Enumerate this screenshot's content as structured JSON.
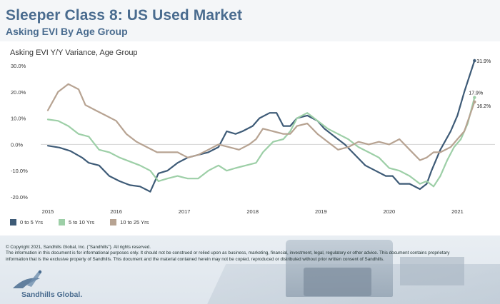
{
  "header": {
    "title": "Sleeper Class 8:  US Used Market",
    "subtitle": "Asking EVI By Age Group"
  },
  "chart_label": "Asking EVI Y/Y Variance, Age Group",
  "legend": [
    {
      "name": "0 to 5 Yrs",
      "color": "#3e5b77"
    },
    {
      "name": "5 to 10 Yrs",
      "color": "#9dcfa7"
    },
    {
      "name": "10 to 25 Yrs",
      "color": "#b7a392"
    }
  ],
  "footer": {
    "line1": "© Copyright 2021, Sandhills Global, Inc. (\"Sandhills\"). All rights reserved.",
    "line2": "The information in this document is for informational purposes only.  It should not be construed or relied upon as business, marketing, financial, investment, legal, regulatory or other advice. This document contains proprietary",
    "line3": "information that is the exclusive property of Sandhills. This document and the material contained herein may not be copied, reproduced or distributed without prior written consent of Sandhills.",
    "logo_text": "Sandhills Global."
  },
  "chart_data": {
    "type": "line",
    "title": "",
    "ylabel": "Asking EVI Y/Y Variance, Age Group",
    "xlim": [
      2015,
      2021.55
    ],
    "ylim": [
      -20,
      30
    ],
    "x_ticks": [
      "2015",
      "2016",
      "2017",
      "2018",
      "2019",
      "2020",
      "2021"
    ],
    "y_ticks": [
      "30.0%",
      "20.0%",
      "10.0%",
      "0.0%",
      "-10.0%",
      "-20.0%"
    ],
    "end_labels": [
      "31.9%",
      "17.9%",
      "16.2%"
    ],
    "series": [
      {
        "name": "0 to 5 Yrs",
        "color": "#3e5b77",
        "points": [
          [
            2015.0,
            -0.5
          ],
          [
            2015.17,
            -1.2
          ],
          [
            2015.33,
            -2.5
          ],
          [
            2015.5,
            -5
          ],
          [
            2015.6,
            -7
          ],
          [
            2015.75,
            -8
          ],
          [
            2015.9,
            -12
          ],
          [
            2016.05,
            -14
          ],
          [
            2016.2,
            -15.5
          ],
          [
            2016.35,
            -16
          ],
          [
            2016.5,
            -18
          ],
          [
            2016.62,
            -11
          ],
          [
            2016.75,
            -10
          ],
          [
            2016.9,
            -7
          ],
          [
            2017.05,
            -5
          ],
          [
            2017.2,
            -4
          ],
          [
            2017.35,
            -3
          ],
          [
            2017.5,
            -1
          ],
          [
            2017.62,
            5
          ],
          [
            2017.75,
            4
          ],
          [
            2017.85,
            5
          ],
          [
            2018.0,
            7
          ],
          [
            2018.1,
            10
          ],
          [
            2018.25,
            12
          ],
          [
            2018.35,
            12
          ],
          [
            2018.45,
            7
          ],
          [
            2018.55,
            7
          ],
          [
            2018.65,
            10
          ],
          [
            2018.8,
            11
          ],
          [
            2018.95,
            9
          ],
          [
            2019.05,
            6
          ],
          [
            2019.2,
            3
          ],
          [
            2019.35,
            0
          ],
          [
            2019.5,
            -4
          ],
          [
            2019.65,
            -8
          ],
          [
            2019.8,
            -10
          ],
          [
            2019.95,
            -12
          ],
          [
            2020.05,
            -12
          ],
          [
            2020.15,
            -15
          ],
          [
            2020.3,
            -15
          ],
          [
            2020.45,
            -17
          ],
          [
            2020.55,
            -15
          ],
          [
            2020.62,
            -10
          ],
          [
            2020.75,
            -2
          ],
          [
            2020.9,
            5
          ],
          [
            2021.0,
            11
          ],
          [
            2021.1,
            20
          ],
          [
            2021.25,
            31.9
          ]
        ]
      },
      {
        "name": "5 to 10 Yrs",
        "color": "#9dcfa7",
        "points": [
          [
            2015.0,
            9.5
          ],
          [
            2015.15,
            9
          ],
          [
            2015.3,
            7
          ],
          [
            2015.45,
            4
          ],
          [
            2015.6,
            3
          ],
          [
            2015.75,
            -2
          ],
          [
            2015.9,
            -3
          ],
          [
            2016.05,
            -5
          ],
          [
            2016.2,
            -6.5
          ],
          [
            2016.35,
            -8
          ],
          [
            2016.5,
            -10
          ],
          [
            2016.62,
            -14
          ],
          [
            2016.75,
            -13
          ],
          [
            2016.9,
            -12
          ],
          [
            2017.05,
            -13
          ],
          [
            2017.2,
            -13
          ],
          [
            2017.35,
            -10
          ],
          [
            2017.5,
            -8
          ],
          [
            2017.62,
            -10
          ],
          [
            2017.75,
            -9
          ],
          [
            2017.9,
            -8
          ],
          [
            2018.05,
            -7
          ],
          [
            2018.15,
            -3
          ],
          [
            2018.3,
            1
          ],
          [
            2018.45,
            2
          ],
          [
            2018.55,
            5
          ],
          [
            2018.65,
            10
          ],
          [
            2018.8,
            12
          ],
          [
            2018.95,
            9
          ],
          [
            2019.1,
            6
          ],
          [
            2019.25,
            4
          ],
          [
            2019.4,
            2
          ],
          [
            2019.55,
            -1
          ],
          [
            2019.7,
            -3
          ],
          [
            2019.85,
            -5
          ],
          [
            2020.0,
            -9
          ],
          [
            2020.15,
            -10
          ],
          [
            2020.3,
            -12
          ],
          [
            2020.45,
            -15
          ],
          [
            2020.55,
            -14
          ],
          [
            2020.65,
            -16
          ],
          [
            2020.75,
            -12
          ],
          [
            2020.85,
            -6
          ],
          [
            2020.95,
            -1
          ],
          [
            2021.05,
            2
          ],
          [
            2021.15,
            8
          ],
          [
            2021.25,
            17.9
          ]
        ]
      },
      {
        "name": "10 to 25 Yrs",
        "color": "#b7a392",
        "points": [
          [
            2015.0,
            13
          ],
          [
            2015.15,
            20
          ],
          [
            2015.3,
            23
          ],
          [
            2015.45,
            21
          ],
          [
            2015.55,
            15
          ],
          [
            2015.7,
            13
          ],
          [
            2015.85,
            11
          ],
          [
            2016.0,
            9
          ],
          [
            2016.15,
            4
          ],
          [
            2016.3,
            1
          ],
          [
            2016.45,
            -1
          ],
          [
            2016.6,
            -3
          ],
          [
            2016.75,
            -3
          ],
          [
            2016.9,
            -3
          ],
          [
            2017.05,
            -5
          ],
          [
            2017.2,
            -4
          ],
          [
            2017.35,
            -2
          ],
          [
            2017.5,
            0
          ],
          [
            2017.65,
            -1
          ],
          [
            2017.8,
            -2
          ],
          [
            2017.95,
            0
          ],
          [
            2018.05,
            2
          ],
          [
            2018.15,
            6
          ],
          [
            2018.3,
            5
          ],
          [
            2018.45,
            4
          ],
          [
            2018.55,
            4
          ],
          [
            2018.65,
            7
          ],
          [
            2018.8,
            8
          ],
          [
            2018.95,
            4
          ],
          [
            2019.1,
            1
          ],
          [
            2019.25,
            -2
          ],
          [
            2019.4,
            -1
          ],
          [
            2019.55,
            1
          ],
          [
            2019.7,
            0
          ],
          [
            2019.85,
            1
          ],
          [
            2020.0,
            0
          ],
          [
            2020.15,
            2
          ],
          [
            2020.3,
            -2
          ],
          [
            2020.45,
            -6
          ],
          [
            2020.55,
            -5
          ],
          [
            2020.65,
            -3
          ],
          [
            2020.75,
            -3
          ],
          [
            2020.9,
            -1
          ],
          [
            2021.0,
            2
          ],
          [
            2021.1,
            5
          ],
          [
            2021.25,
            16.2
          ]
        ]
      }
    ]
  }
}
